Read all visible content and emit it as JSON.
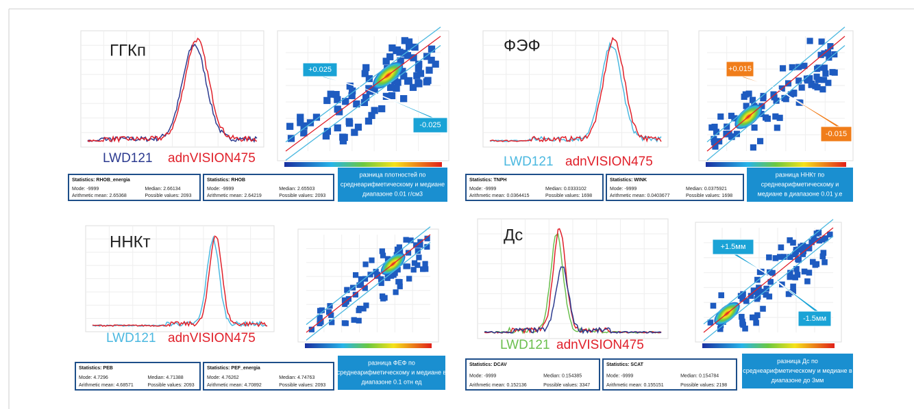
{
  "panels": [
    {
      "title": "ГГКп",
      "legend": [
        "LWD121",
        "adnVISION475"
      ],
      "stats": [
        {
          "title": "Statistics: RHOB_energia",
          "mode": "Mode: -9999",
          "median": "Median: 2.66134",
          "mean": "Arithmetic mean: 2.65368",
          "possible": "Possible values: 2093"
        },
        {
          "title": "Statistics: RHOB",
          "mode": "Mode: -9999",
          "median": "Median: 2.65503",
          "mean": "Arithmetic mean: 2.64219",
          "possible": "Possible values: 2093"
        }
      ],
      "note": [
        "разница плотностей по",
        "среднеарифметическому и медиане",
        "диапазоне 0.01 г/см3"
      ],
      "callouts": [
        "+0.025",
        "-0.025"
      ]
    },
    {
      "title": "ФЭФ",
      "legend": [
        "LWD121",
        "adnVISION475"
      ],
      "stats": [
        {
          "title": "Statistics: TNPH",
          "mode": "Mode: -9999",
          "median": "Median: 0.0333102",
          "mean": "Arithmetic mean: 0.0364415",
          "possible": "Possible values: 1698"
        },
        {
          "title": "Statistics: WINK",
          "mode": "Mode: -9999",
          "median": "Median: 0.0375921",
          "mean": "Arithmetic mean: 0.0403677",
          "possible": "Possible values: 1698"
        }
      ],
      "note": [
        "разница ННКт по",
        "среднеарифметическому и",
        "медиане в диапазоне 0.01 у.е"
      ],
      "callouts": [
        "+0.015",
        "-0.015"
      ]
    },
    {
      "title": "ННКт",
      "legend": [
        "LWD121",
        "adnVISION475"
      ],
      "stats": [
        {
          "title": "Statistics: PEB",
          "mode": "Mode: 4.7296",
          "median": "Median: 4.71388",
          "mean": "Arithmetic mean: 4.68571",
          "possible": "Possible values: 2093"
        },
        {
          "title": "Statistics: PEF_energia",
          "mode": "Mode: 4.76262",
          "median": "Median: 4.74763",
          "mean": "Arithmetic mean: 4.70892",
          "possible": "Possible values: 2093"
        }
      ],
      "note": [
        "разница ФЕФ по",
        "среднеарифметическому и медиане в",
        "диапазоне 0.1 отн ед"
      ],
      "callouts": []
    },
    {
      "title": "Дс",
      "legend": [
        "LWD121",
        "adnVISION475"
      ],
      "stats": [
        {
          "title": "Statistics: DCAV",
          "mode": "Mode: -9999",
          "median": "Median: 0.154385",
          "mean": "Arithmetic mean: 0.152136",
          "possible": "Possible values: 3347"
        },
        {
          "title": "Statistics: SCAT",
          "mode": "Mode: -9999",
          "median": "Median: 0.154784",
          "mean": "Arithmetic mean: 0.155151",
          "possible": "Possible values: 2198"
        }
      ],
      "note": [
        "разница Дс по",
        "среднеарифметическому и медиане в",
        "диапазоне до 3мм"
      ],
      "callouts": [
        "+1.5мм",
        "-1.5мм"
      ]
    }
  ]
}
